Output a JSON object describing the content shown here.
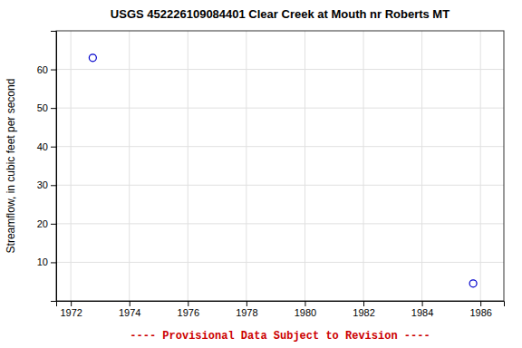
{
  "chart_data": {
    "type": "scatter",
    "title": "USGS 452226109084401 Clear Creek at Mouth nr Roberts MT",
    "y_label": "Streamflow, in cubic feet per second",
    "annotations": [
      {
        "text": "---- Provisional Data Subject to Revision ----",
        "color": "#cc0000"
      }
    ],
    "x": [
      1972.75,
      1985.75
    ],
    "values": [
      63.0,
      4.5
    ],
    "color": "#0000cc",
    "marker": "open-circle",
    "xlim": [
      1971.5,
      1986.8
    ],
    "ylim": [
      0,
      70
    ],
    "xticks": [
      1972,
      1974,
      1976,
      1978,
      1980,
      1982,
      1984,
      1986
    ],
    "yticks": [
      10,
      20,
      30,
      40,
      50,
      60
    ],
    "grid": true
  }
}
